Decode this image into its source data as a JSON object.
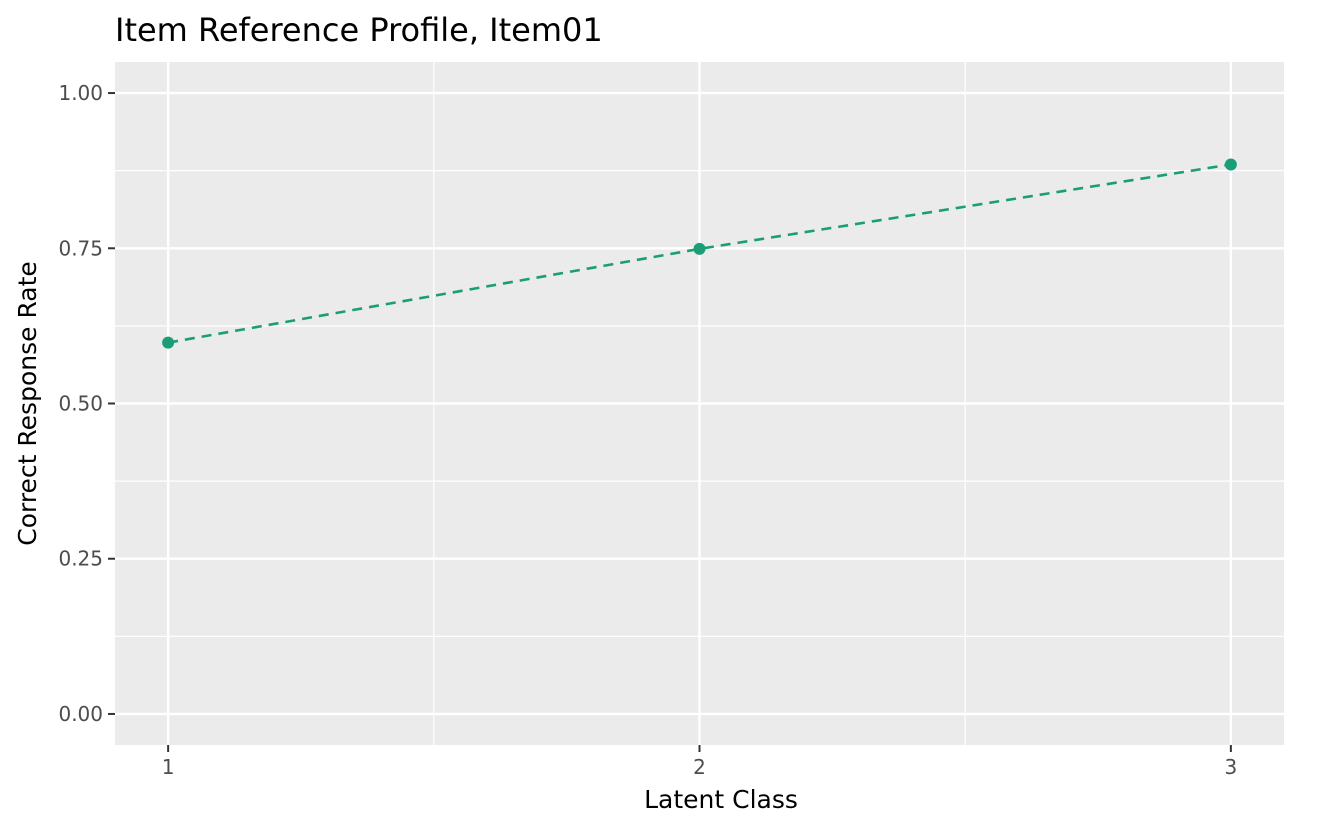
{
  "chart_data": {
    "type": "line",
    "title": "Item Reference Profile, Item01",
    "xlabel": "Latent Class",
    "ylabel": "Correct Response Rate",
    "x": [
      1,
      2,
      3
    ],
    "series": [
      {
        "values": [
          0.598,
          0.749,
          0.885
        ],
        "color": "#1b9e77",
        "line_style": "dashed",
        "markers": true
      }
    ],
    "xlim": [
      0.9,
      3.1
    ],
    "ylim": [
      -0.05,
      1.05
    ],
    "x_ticks": [
      1,
      2,
      3
    ],
    "x_tick_labels": [
      "1",
      "2",
      "3"
    ],
    "y_ticks": [
      0,
      0.25,
      0.5,
      0.75,
      1
    ],
    "y_tick_labels": [
      "0.00",
      "0.25",
      "0.50",
      "0.75",
      "1.00"
    ],
    "grid": true,
    "panel_background": "#ebebeb",
    "grid_color": "#ffffff"
  }
}
